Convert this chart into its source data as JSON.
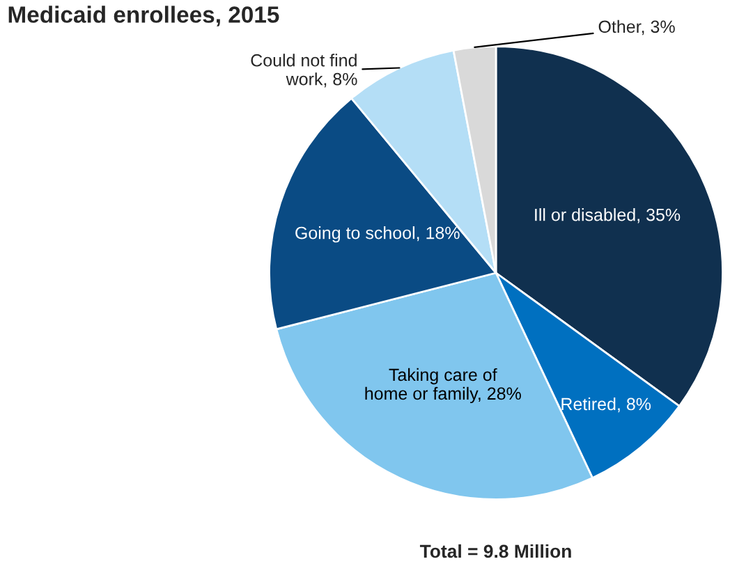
{
  "chart_data": {
    "type": "pie",
    "title": "Medicaid enrollees, 2015",
    "categories": [
      "Ill or disabled",
      "Retired",
      "Taking care of\nhome or family",
      "Going to school",
      "Could not find\nwork",
      "Other"
    ],
    "values": [
      35,
      8,
      28,
      18,
      8,
      3
    ],
    "value_labels": [
      "35%",
      "8%",
      "28%",
      "18%",
      "8%",
      "3%"
    ],
    "colors": [
      "#10304f",
      "#0070c0",
      "#80c6ee",
      "#0a4b84",
      "#b4def6",
      "#d9d9d9"
    ],
    "annotations": [
      "Total = 9.8 Million"
    ],
    "legend": false
  }
}
